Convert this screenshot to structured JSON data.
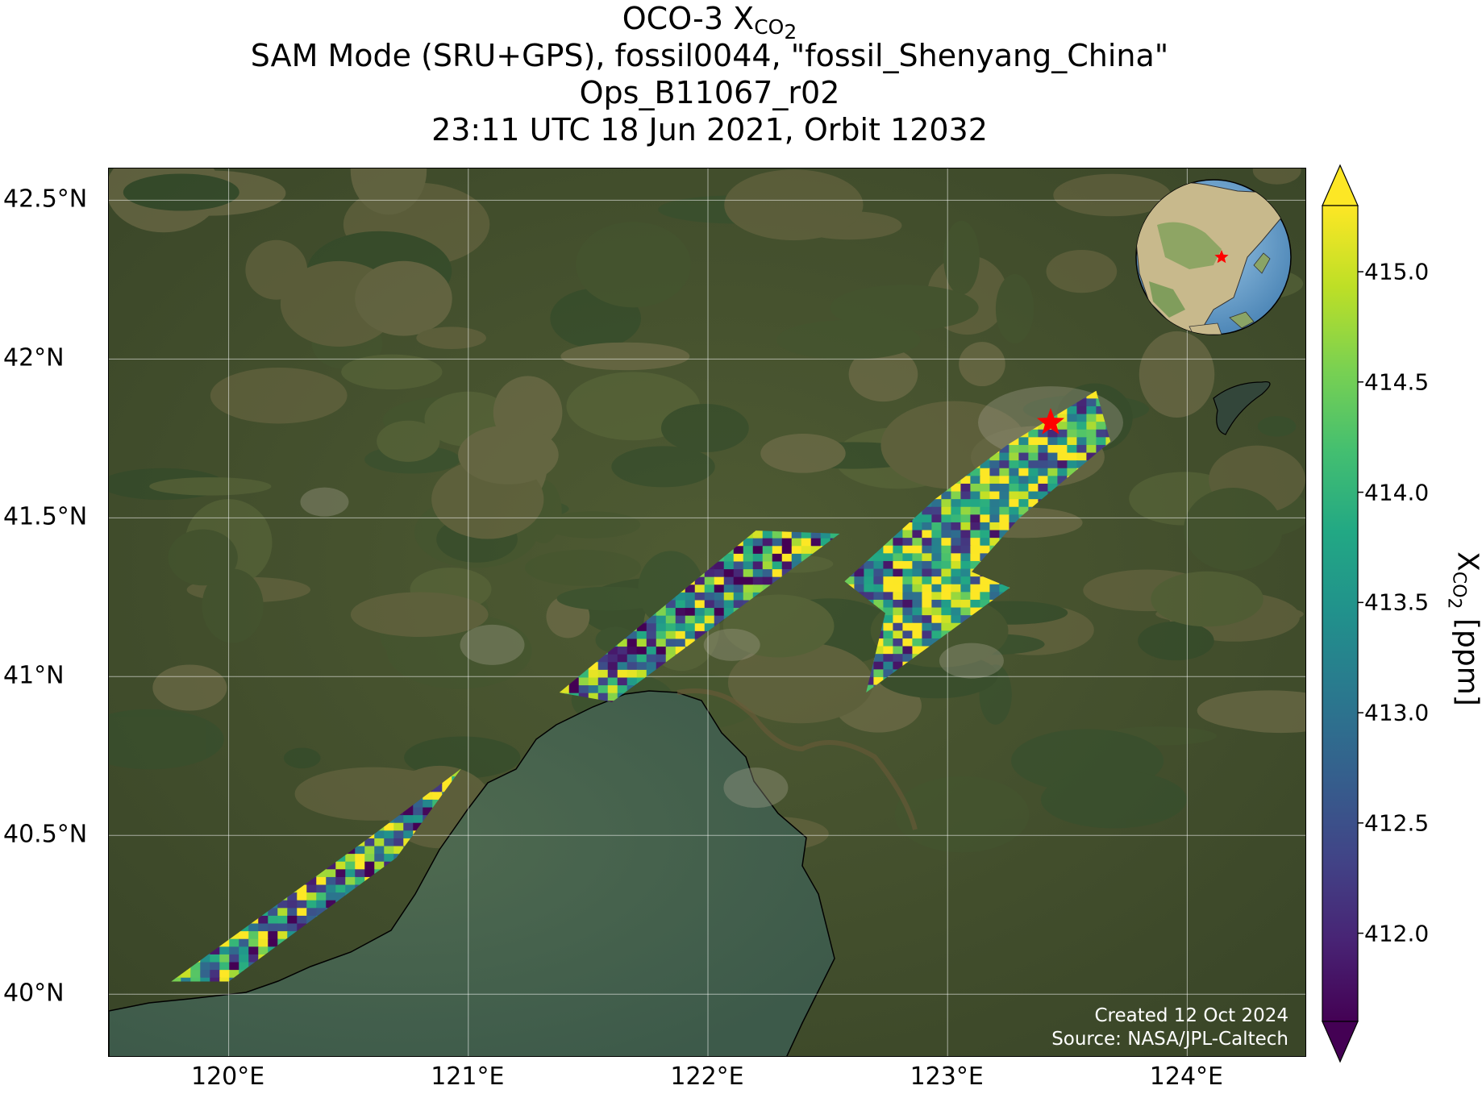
{
  "title": {
    "line1_main": "OCO-3 X",
    "line1_sub": "CO",
    "line1_subsub": "2",
    "line2": "SAM Mode (SRU+GPS), fossil0044, \"fossil_Shenyang_China\"",
    "line3": "Ops_B11067_r02",
    "line4": "23:11 UTC 18 Jun 2021, Orbit 12032"
  },
  "map": {
    "lon_range": [
      119.5,
      124.5
    ],
    "lat_range": [
      39.8,
      42.6
    ],
    "lon_ticks": [
      120,
      121,
      122,
      123,
      124
    ],
    "lat_ticks": [
      40,
      40.5,
      41,
      41.5,
      42,
      42.5
    ],
    "lon_tick_labels": [
      "120°E",
      "121°E",
      "122°E",
      "123°E",
      "124°E"
    ],
    "lat_tick_labels": [
      "40°N",
      "40.5°N",
      "41°N",
      "41.5°N",
      "42°N",
      "42.5°N"
    ],
    "gridlines": true,
    "target_marker": {
      "lon": 123.43,
      "lat": 41.8,
      "shape": "star",
      "color": "#ff0000"
    },
    "inset_globe": {
      "placement": "top-right",
      "marker_color": "#ff0000"
    }
  },
  "chart_data": {
    "type": "heatmap",
    "variable": "XCO2",
    "colormap": "viridis",
    "clim": [
      411.6,
      415.3
    ],
    "colorbar_ticks": [
      412.0,
      412.5,
      413.0,
      413.5,
      414.0,
      414.5,
      415.0
    ],
    "colorbar_tick_labels": [
      "412.0",
      "412.5",
      "413.0",
      "413.5",
      "414.0",
      "414.5",
      "415.0"
    ],
    "colorbar_label_main": "X",
    "colorbar_label_sub": "CO",
    "colorbar_label_subsub": "2",
    "colorbar_label_unit": " [ppm]",
    "colorbar_extend": "both",
    "swaths": [
      {
        "name": "swath-southwest",
        "corners": [
          [
            119.76,
            40.04
          ],
          [
            120.0,
            40.04
          ],
          [
            120.7,
            40.43
          ],
          [
            120.97,
            40.71
          ],
          [
            120.6,
            40.5
          ],
          [
            119.76,
            40.04
          ]
        ],
        "mean_ppm": 413.6
      },
      {
        "name": "swath-central",
        "corners": [
          [
            121.38,
            40.95
          ],
          [
            121.6,
            40.92
          ],
          [
            122.55,
            41.45
          ],
          [
            122.2,
            41.46
          ],
          [
            121.38,
            40.95
          ]
        ],
        "mean_ppm": 413.4
      },
      {
        "name": "swath-northeast",
        "corners": [
          [
            122.57,
            41.3
          ],
          [
            122.74,
            41.2
          ],
          [
            122.66,
            40.95
          ],
          [
            123.26,
            41.28
          ],
          [
            123.1,
            41.33
          ],
          [
            123.3,
            41.5
          ],
          [
            123.68,
            41.74
          ],
          [
            123.62,
            41.9
          ],
          [
            123.25,
            41.73
          ],
          [
            122.95,
            41.56
          ],
          [
            122.57,
            41.3
          ]
        ],
        "mean_ppm": 413.9
      }
    ]
  },
  "credit": {
    "line1": "Created 12 Oct 2024",
    "line2": "Source: NASA/JPL-Caltech"
  }
}
